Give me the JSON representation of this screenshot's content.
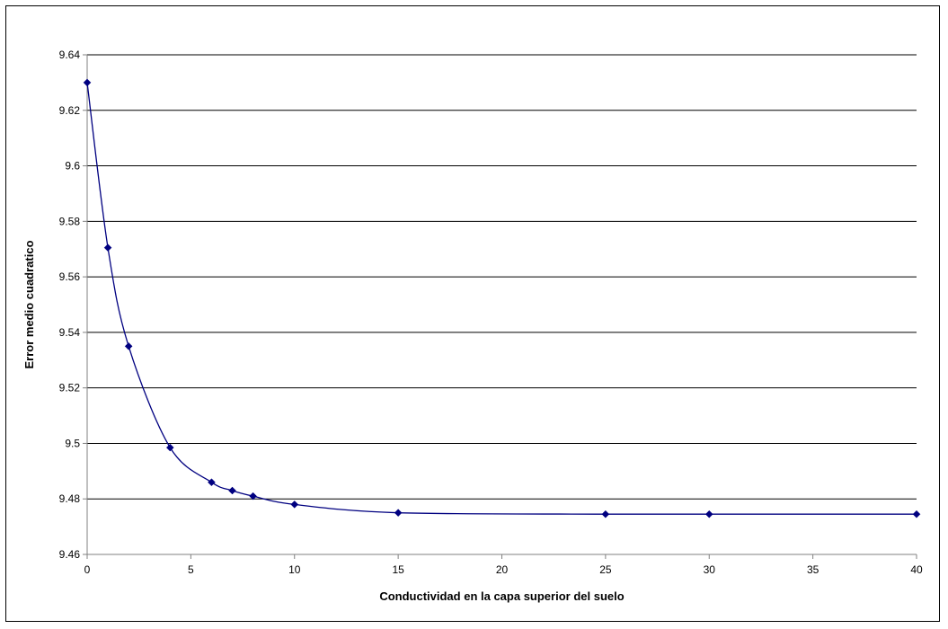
{
  "chart_data": {
    "type": "line",
    "title": "",
    "xlabel": "Conductividad en la capa superior del suelo",
    "ylabel": "Error medio cuadratico",
    "xlim": [
      0,
      40
    ],
    "ylim": [
      9.46,
      9.64
    ],
    "xticks": [
      "0",
      "5",
      "10",
      "15",
      "20",
      "25",
      "30",
      "35",
      "40"
    ],
    "yticks": [
      "9.46",
      "9.48",
      "9.5",
      "9.52",
      "9.54",
      "9.56",
      "9.58",
      "9.6",
      "9.62",
      "9.64"
    ],
    "grid": "horizontal",
    "legend": "none",
    "line_color": "#000080",
    "smooth": true,
    "series": [
      {
        "x": [
          0,
          1,
          2,
          4,
          6,
          7,
          8,
          10,
          15,
          25,
          30,
          40
        ],
        "y": [
          9.63,
          9.5705,
          9.535,
          9.4985,
          9.486,
          9.483,
          9.481,
          9.478,
          9.475,
          9.4745,
          9.4745,
          9.4745
        ]
      }
    ]
  }
}
